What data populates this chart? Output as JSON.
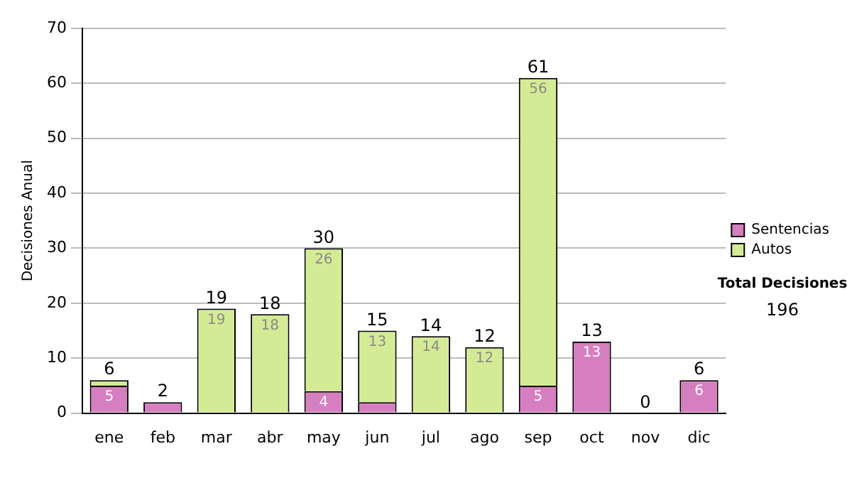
{
  "chart_data": {
    "type": "bar",
    "stacked": true,
    "ylabel": "Decisiones Anual",
    "categories": [
      "ene",
      "feb",
      "mar",
      "abr",
      "may",
      "jun",
      "jul",
      "ago",
      "sep",
      "oct",
      "nov",
      "dic"
    ],
    "series": [
      {
        "name": "Sentencias",
        "color": "#d67fc0",
        "values": [
          5,
          2,
          0,
          0,
          4,
          2,
          0,
          0,
          5,
          13,
          0,
          6
        ],
        "value_labels": [
          "5",
          null,
          null,
          null,
          "4",
          null,
          null,
          null,
          "5",
          "13",
          null,
          "6"
        ]
      },
      {
        "name": "Autos",
        "color": "#d4eb95",
        "values": [
          1,
          0,
          19,
          18,
          26,
          13,
          14,
          12,
          56,
          0,
          0,
          0
        ],
        "value_labels": [
          null,
          null,
          "19",
          "18",
          "26",
          "13",
          "14",
          "12",
          "56",
          null,
          null,
          null
        ]
      }
    ],
    "totals": [
      "6",
      "2",
      "19",
      "18",
      "30",
      "15",
      "14",
      "12",
      "61",
      "13",
      "0",
      "6"
    ],
    "ylim": [
      0,
      70
    ],
    "yticks": [
      0,
      10,
      20,
      30,
      40,
      50,
      60,
      70
    ],
    "grid": "y",
    "legend": "right",
    "annotations": [
      "Total Decisiones",
      "196"
    ]
  }
}
